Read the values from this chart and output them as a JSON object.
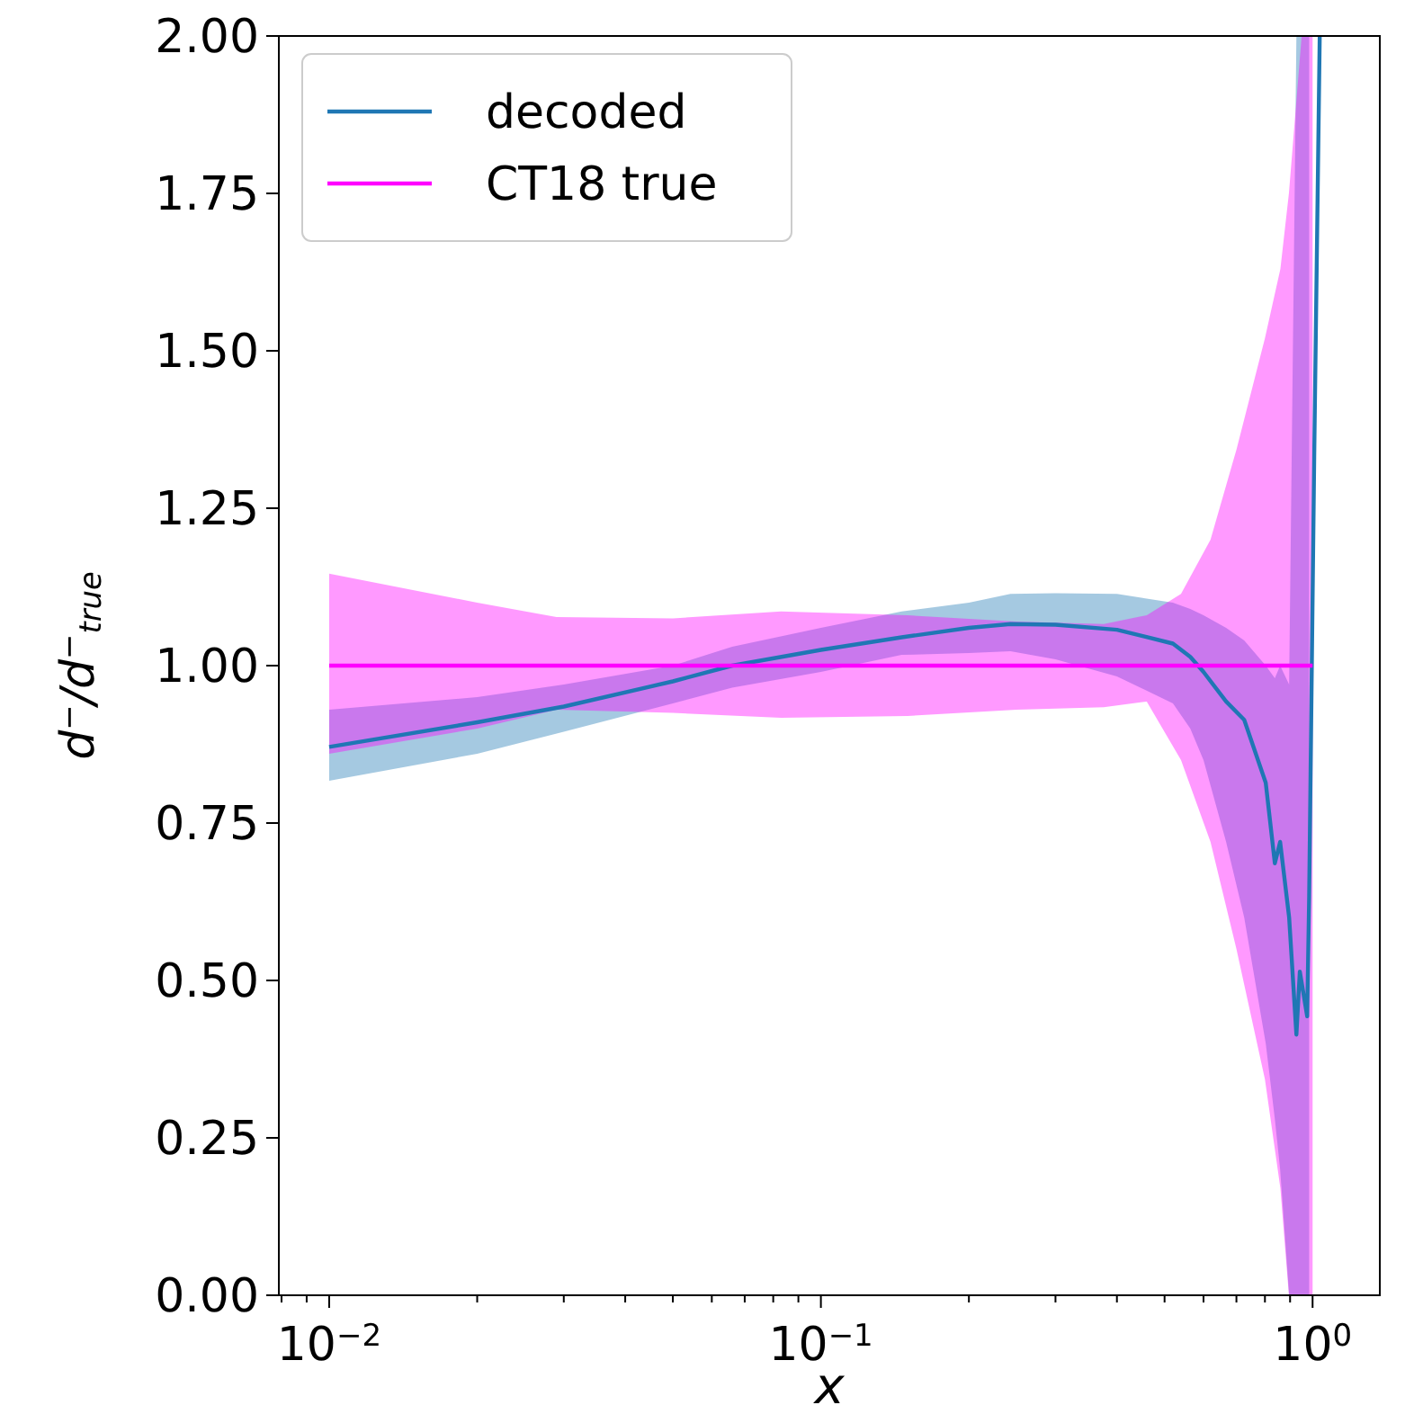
{
  "chart_data": {
    "type": "line",
    "xlabel": "x",
    "ylabel": "d$^{−}$/d$^{−}$$_{true}$",
    "log": "x",
    "grid": false,
    "legend": "top left",
    "xlim": [
      0.0079,
      1.37
    ],
    "ylim": [
      0,
      2
    ],
    "xticks": [
      {
        "value": 0.008,
        "label": null
      },
      {
        "value": 0.009,
        "label": null
      },
      {
        "value": 0.01,
        "label": "10$^{−2}$"
      },
      {
        "value": 0.02,
        "label": null
      },
      {
        "value": 0.03,
        "label": null
      },
      {
        "value": 0.04,
        "label": null
      },
      {
        "value": 0.05,
        "label": null
      },
      {
        "value": 0.06,
        "label": null
      },
      {
        "value": 0.07,
        "label": null
      },
      {
        "value": 0.08,
        "label": null
      },
      {
        "value": 0.09,
        "label": null
      },
      {
        "value": 0.1,
        "label": "10$^{−1}$"
      },
      {
        "value": 0.2,
        "label": null
      },
      {
        "value": 0.3,
        "label": null
      },
      {
        "value": 0.4,
        "label": null
      },
      {
        "value": 0.5,
        "label": null
      },
      {
        "value": 0.6,
        "label": null
      },
      {
        "value": 0.7,
        "label": null
      },
      {
        "value": 0.8,
        "label": null
      },
      {
        "value": 0.9,
        "label": null
      },
      {
        "value": 1,
        "label": "10$^{0}$"
      }
    ],
    "yticks": [
      {
        "value": 0,
        "label": "0.00"
      },
      {
        "value": 0.25,
        "label": "0.25"
      },
      {
        "value": 0.5,
        "label": "0.50"
      },
      {
        "value": 0.75,
        "label": "0.75"
      },
      {
        "value": 1,
        "label": "1.00"
      },
      {
        "value": 1.25,
        "label": "1.25"
      },
      {
        "value": 1.5,
        "label": "1.50"
      },
      {
        "value": 1.75,
        "label": "1.75"
      },
      {
        "value": 2,
        "label": "2.00"
      }
    ],
    "series": [
      {
        "name": "decoded",
        "color": "#1f77b4",
        "x": [
          0.01,
          0.02,
          0.03,
          0.05,
          0.066,
          0.1,
          0.146,
          0.2,
          0.243,
          0.3,
          0.4,
          0.52,
          0.564,
          0.6,
          0.667,
          0.726,
          0.803,
          0.838,
          0.859,
          0.896,
          0.927,
          0.942,
          0.975,
          0.984,
          1.008,
          1.034
        ],
        "values": [
          0.871,
          0.91,
          0.935,
          0.975,
          1.0,
          1.025,
          1.045,
          1.06,
          1.066,
          1.065,
          1.057,
          1.035,
          1.014,
          0.99,
          0.943,
          0.914,
          0.814,
          0.686,
          0.72,
          0.6,
          0.414,
          0.514,
          0.443,
          0.63,
          1.343,
          2.0
        ],
        "lower": [
          0.817,
          0.86,
          0.895,
          0.94,
          0.965,
          0.99,
          1.017,
          1.02,
          1.023,
          1.01,
          0.983,
          0.94,
          0.9,
          0.85,
          0.72,
          0.6,
          0.4,
          0.28,
          0.2,
          0.0,
          0.0,
          0.0,
          0.0,
          0.0,
          null,
          null
        ],
        "upper": [
          0.93,
          0.95,
          0.97,
          1.0,
          1.03,
          1.06,
          1.086,
          1.1,
          1.114,
          1.115,
          1.114,
          1.1,
          1.09,
          1.08,
          1.06,
          1.04,
          1.0,
          0.98,
          1.0,
          0.97,
          2.0,
          2.0,
          2.0,
          2.0,
          null,
          null
        ]
      },
      {
        "name": "CT18 true",
        "color": "#ff00ff",
        "x": [
          0.01,
          0.02,
          0.029,
          0.05,
          0.083,
          0.15,
          0.25,
          0.376,
          0.46,
          0.54,
          0.62,
          0.7,
          0.8,
          0.86,
          0.895,
          0.95,
          1.0
        ],
        "values": [
          1,
          1,
          1,
          1,
          1,
          1,
          1,
          1,
          1,
          1,
          1,
          1,
          1,
          1,
          1,
          1,
          1
        ],
        "lower": [
          0.86,
          0.9,
          0.93,
          0.925,
          0.917,
          0.92,
          0.93,
          0.934,
          0.943,
          0.85,
          0.72,
          0.55,
          0.343,
          0.17,
          0.0,
          0.0,
          0.0
        ],
        "upper": [
          1.146,
          1.1,
          1.077,
          1.075,
          1.086,
          1.08,
          1.07,
          1.066,
          1.08,
          1.114,
          1.2,
          1.343,
          1.52,
          1.63,
          1.75,
          2.0,
          2.0
        ]
      }
    ]
  }
}
